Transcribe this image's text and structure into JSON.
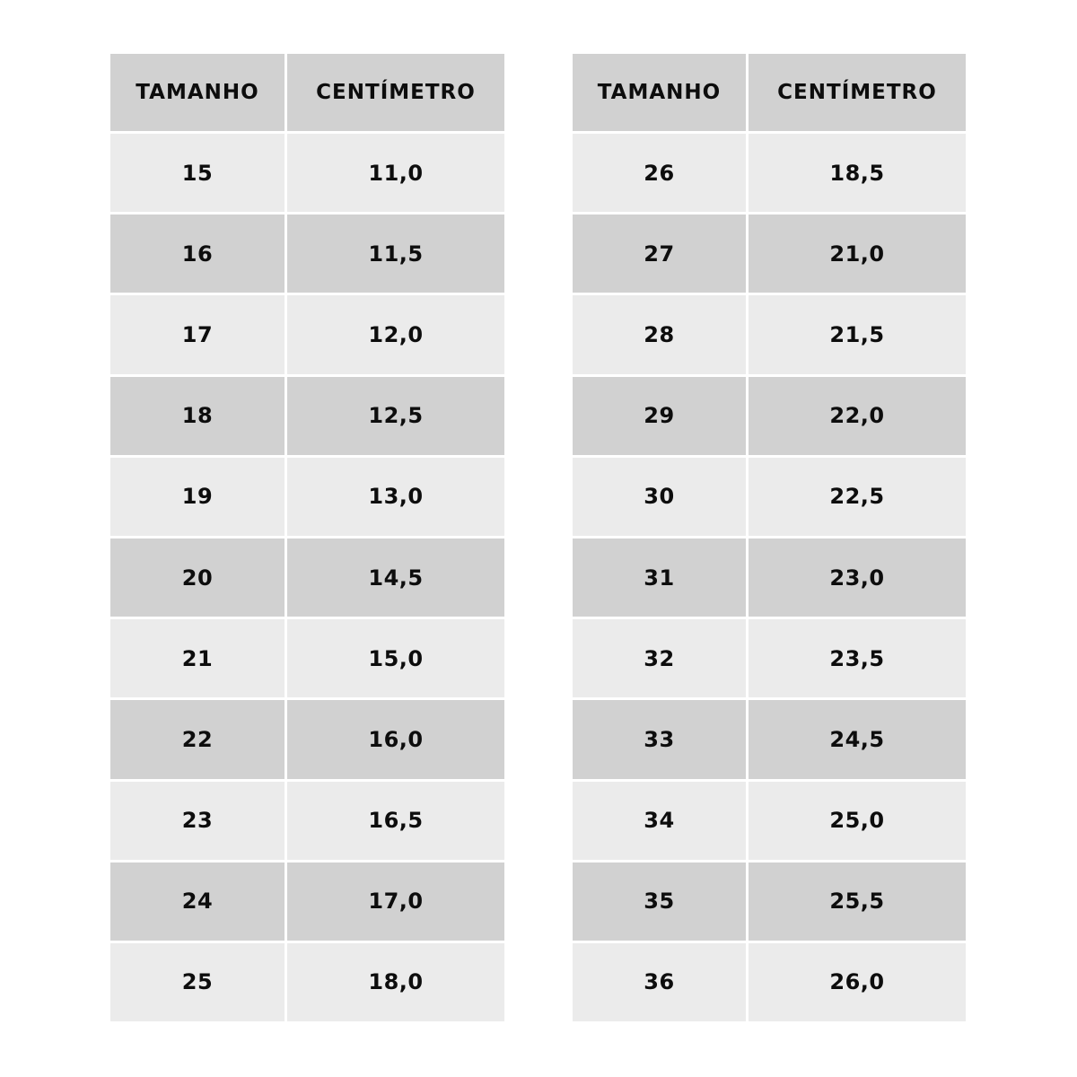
{
  "colors": {
    "header_bg": "#d1d1d1",
    "row_light": "#ebebeb",
    "row_dark": "#d1d1d1",
    "text": "#0d0d0d"
  },
  "tables": [
    {
      "headers": [
        "TAMANHO",
        "CENTÍMETRO"
      ],
      "rows": [
        [
          "15",
          "11,0"
        ],
        [
          "16",
          "11,5"
        ],
        [
          "17",
          "12,0"
        ],
        [
          "18",
          "12,5"
        ],
        [
          "19",
          "13,0"
        ],
        [
          "20",
          "14,5"
        ],
        [
          "21",
          "15,0"
        ],
        [
          "22",
          "16,0"
        ],
        [
          "23",
          "16,5"
        ],
        [
          "24",
          "17,0"
        ],
        [
          "25",
          "18,0"
        ]
      ]
    },
    {
      "headers": [
        "TAMANHO",
        "CENTÍMETRO"
      ],
      "rows": [
        [
          "26",
          "18,5"
        ],
        [
          "27",
          "21,0"
        ],
        [
          "28",
          "21,5"
        ],
        [
          "29",
          "22,0"
        ],
        [
          "30",
          "22,5"
        ],
        [
          "31",
          "23,0"
        ],
        [
          "32",
          "23,5"
        ],
        [
          "33",
          "24,5"
        ],
        [
          "34",
          "25,0"
        ],
        [
          "35",
          "25,5"
        ],
        [
          "36",
          "26,0"
        ]
      ]
    }
  ]
}
